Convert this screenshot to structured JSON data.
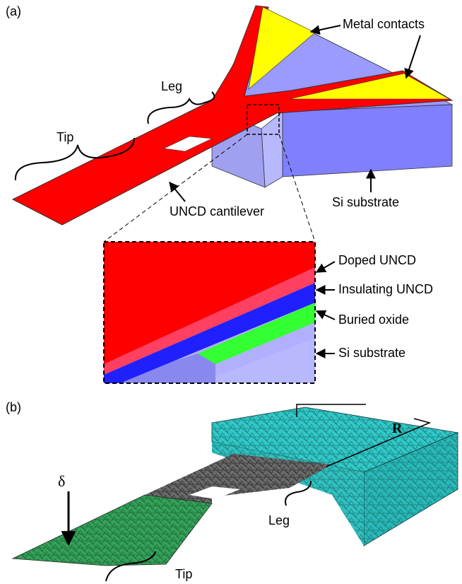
{
  "panel_a": {
    "label": "(a)",
    "metal_contacts": "Metal contacts",
    "leg": "Leg",
    "tip": "Tip",
    "cantilever": "UNCD cantilever",
    "substrate": "Si substrate",
    "inset": {
      "doped": "Doped UNCD",
      "insulating": "Insulating UNCD",
      "oxide": "Buried oxide",
      "substrate": "Si substrate"
    }
  },
  "panel_b": {
    "label": "(b)",
    "r": "R",
    "delta": "δ",
    "leg": "Leg",
    "tip": "Tip"
  }
}
